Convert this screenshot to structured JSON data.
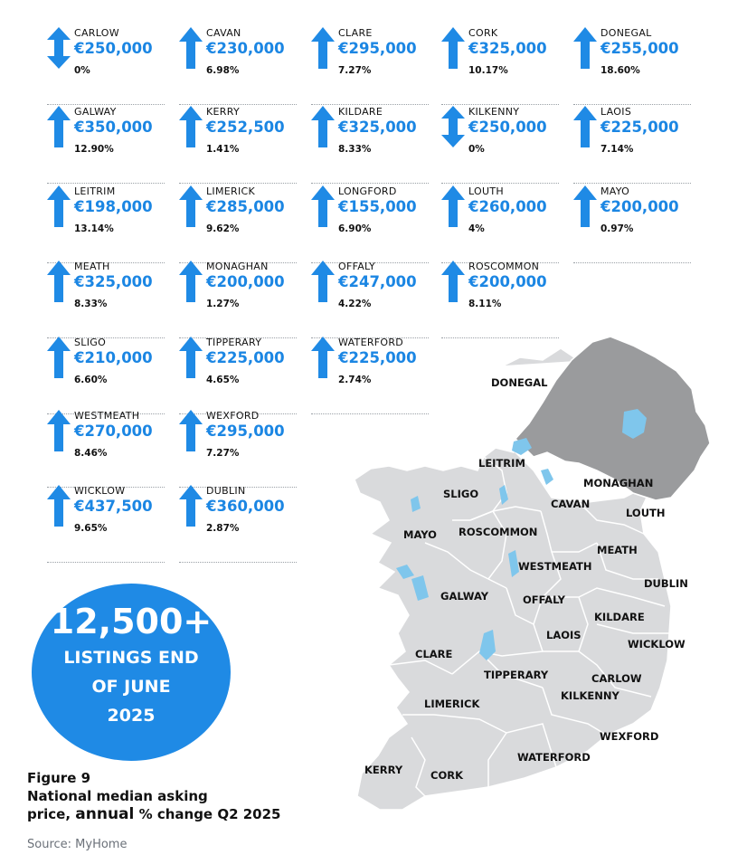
{
  "counties": [
    {
      "name": "CARLOW",
      "price": "€250,000",
      "pct": "0%",
      "dir": "both"
    },
    {
      "name": "CAVAN",
      "price": "€230,000",
      "pct": "6.98%",
      "dir": "up"
    },
    {
      "name": "CLARE",
      "price": "€295,000",
      "pct": "7.27%",
      "dir": "up"
    },
    {
      "name": "CORK",
      "price": "€325,000",
      "pct": "10.17%",
      "dir": "up"
    },
    {
      "name": "DONEGAL",
      "price": "€255,000",
      "pct": "18.60%",
      "dir": "up"
    },
    {
      "name": "GALWAY",
      "price": "€350,000",
      "pct": "12.90%",
      "dir": "up"
    },
    {
      "name": "KERRY",
      "price": "€252,500",
      "pct": "1.41%",
      "dir": "up"
    },
    {
      "name": "KILDARE",
      "price": "€325,000",
      "pct": "8.33%",
      "dir": "up"
    },
    {
      "name": "KILKENNY",
      "price": "€250,000",
      "pct": "0%",
      "dir": "both"
    },
    {
      "name": "LAOIS",
      "price": "€225,000",
      "pct": "7.14%",
      "dir": "up"
    },
    {
      "name": "LEITRIM",
      "price": "€198,000",
      "pct": "13.14%",
      "dir": "up"
    },
    {
      "name": "LIMERICK",
      "price": "€285,000",
      "pct": "9.62%",
      "dir": "up"
    },
    {
      "name": "LONGFORD",
      "price": "€155,000",
      "pct": "6.90%",
      "dir": "up"
    },
    {
      "name": "LOUTH",
      "price": "€260,000",
      "pct": "4%",
      "dir": "up"
    },
    {
      "name": "MAYO",
      "price": "€200,000",
      "pct": "0.97%",
      "dir": "up"
    },
    {
      "name": "MEATH",
      "price": "€325,000",
      "pct": "8.33%",
      "dir": "up"
    },
    {
      "name": "MONAGHAN",
      "price": "€200,000",
      "pct": "1.27%",
      "dir": "up"
    },
    {
      "name": "OFFALY",
      "price": "€247,000",
      "pct": "4.22%",
      "dir": "up"
    },
    {
      "name": "ROSCOMMON",
      "price": "€200,000",
      "pct": "8.11%",
      "dir": "up"
    },
    {
      "name": "SLIGO",
      "price": "€210,000",
      "pct": "6.60%",
      "dir": "up"
    },
    {
      "name": "TIPPERARY",
      "price": "€225,000",
      "pct": "4.65%",
      "dir": "up"
    },
    {
      "name": "WATERFORD",
      "price": "€225,000",
      "pct": "2.74%",
      "dir": "up"
    },
    {
      "name": "WESTMEATH",
      "price": "€270,000",
      "pct": "8.46%",
      "dir": "up"
    },
    {
      "name": "WEXFORD",
      "price": "€295,000",
      "pct": "7.27%",
      "dir": "up"
    },
    {
      "name": "WICKLOW",
      "price": "€437,500",
      "pct": "9.65%",
      "dir": "up"
    },
    {
      "name": "DUBLIN",
      "price": "€360,000",
      "pct": "2.87%",
      "dir": "up"
    }
  ],
  "bubble": {
    "headline": "12,500+",
    "line1": "LISTINGS END",
    "line2": "OF JUNE",
    "line3": "2025"
  },
  "caption": {
    "figure": "Figure 9",
    "line1": "National median asking",
    "line2_pre": "price, ",
    "line2_bold": "annual",
    "line2_post": " % change Q2 2025"
  },
  "source": "Source: MyHome",
  "map_labels": {
    "donegal": "DONEGAL",
    "leitrim": "LEITRIM",
    "sligo": "SLIGO",
    "monaghan": "MONAGHAN",
    "cavan": "CAVAN",
    "louth": "LOUTH",
    "mayo": "MAYO",
    "roscommon": "ROSCOMMON",
    "meath": "MEATH",
    "westmeath": "WESTMEATH",
    "dublin": "DUBLIN",
    "galway": "GALWAY",
    "offaly": "OFFALY",
    "kildare": "KILDARE",
    "laois": "LAOIS",
    "wicklow": "WICKLOW",
    "clare": "CLARE",
    "tipperary": "TIPPERARY",
    "carlow": "CARLOW",
    "kilkenny": "KILKENNY",
    "limerick": "LIMERICK",
    "wexford": "WEXFORD",
    "waterford": "WATERFORD",
    "kerry": "KERRY",
    "cork": "CORK"
  },
  "colors": {
    "accent": "#1f8ae5",
    "price": "#1b86e3",
    "map_fill": "#d9dadc",
    "ni_fill": "#9a9b9d",
    "water": "#7fc6ec"
  }
}
